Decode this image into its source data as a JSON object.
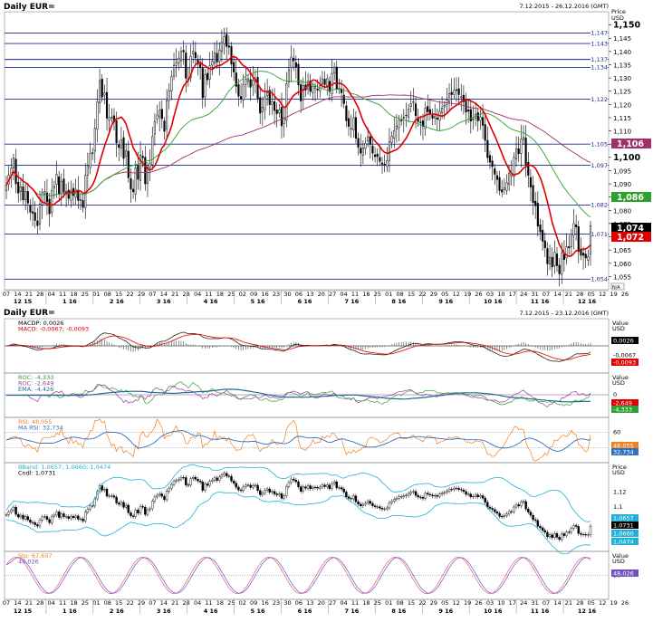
{
  "header": {
    "title": "Daily EUR=",
    "date_range": "7.12.2015 - 26.12.2016 (GMT)",
    "axis_caption_line1": "Price",
    "axis_caption_line2": "USD",
    "badge": "N/A"
  },
  "indicators_header": {
    "title": "Daily EUR=",
    "date_range": "7.12.2015 - 23.12.2016 (GMT)"
  },
  "colors": {
    "candle": "#000000",
    "ma_short": "#e00000",
    "ma_mid": "#2fa02f",
    "ma_long": "#a0306a",
    "hline": "#1c2a8c",
    "macd": "#222222",
    "macd_signal": "#e00000",
    "roc1": "#9a3aa0",
    "roc2": "#2fa02f",
    "roc_ema": "#1c6c8c",
    "rsi": "#f08020",
    "rsi_ma": "#3070c0",
    "boll": "#20b0d8",
    "stoch_k": "#e06080",
    "stoch_d": "#7050c0"
  },
  "chart_data": [
    {
      "type": "candlestick",
      "title": "Daily EUR=",
      "ylabel": "Price USD",
      "ylim": [
        1.05,
        1.155
      ],
      "grid": false,
      "y_ticks": [
        "1,150",
        "1,145",
        "1,140",
        "1,135",
        "1,130",
        "1,125",
        "1,120",
        "1,115",
        "1,110",
        "1,105",
        "1,100",
        "1,095",
        "1,090",
        "1,085",
        "1,080",
        "1,075",
        "1,070",
        "1,065",
        "1,060",
        "1,055"
      ],
      "horizontal_levels": [
        {
          "label": "1,147",
          "value": 1.147
        },
        {
          "label": "1,143",
          "value": 1.143
        },
        {
          "label": "1,137",
          "value": 1.137
        },
        {
          "label": "1,134",
          "value": 1.134
        },
        {
          "label": "1,122",
          "value": 1.122
        },
        {
          "label": "1,105",
          "value": 1.105
        },
        {
          "label": "1,097",
          "value": 1.097
        },
        {
          "label": "1,082",
          "value": 1.082
        },
        {
          "label": "1,071",
          "value": 1.071
        },
        {
          "label": "1,054",
          "value": 1.054
        }
      ],
      "last_value_badges": [
        {
          "label": "1,106",
          "value": 1.106,
          "color": "#a0306a"
        },
        {
          "label": "1,086",
          "value": 1.086,
          "color": "#2fa02f"
        },
        {
          "label": "1,074",
          "value": 1.074,
          "color": "#000000"
        },
        {
          "label": "1,072",
          "value": 1.072,
          "color": "#e00000"
        }
      ],
      "x_ticks_days": [
        "07",
        "14",
        "21",
        "28",
        "04",
        "11",
        "18",
        "25",
        "01",
        "08",
        "15",
        "22",
        "29",
        "07",
        "14",
        "21",
        "28",
        "04",
        "11",
        "18",
        "25",
        "02",
        "09",
        "16",
        "23",
        "30",
        "06",
        "13",
        "20",
        "27",
        "04",
        "11",
        "18",
        "25",
        "01",
        "08",
        "15",
        "22",
        "29",
        "05",
        "12",
        "19",
        "26",
        "03",
        "10",
        "17",
        "24",
        "31",
        "07",
        "14",
        "21",
        "28",
        "05",
        "12",
        "19",
        "26"
      ],
      "x_ticks_months": [
        "12 15",
        "1 16",
        "2 16",
        "3 16",
        "4 16",
        "5 16",
        "6 16",
        "7 16",
        "8 16",
        "9 16",
        "10 16",
        "11 16",
        "12 16"
      ],
      "series": [
        {
          "name": "EUR=",
          "type": "candle",
          "close": [
            1.0895,
            1.0932,
            1.096,
            1.0998,
            1.09,
            1.0865,
            1.0889,
            1.0839,
            1.0871,
            1.0827,
            1.0793,
            1.0789,
            1.0762,
            1.0742,
            1.0824,
            1.0867,
            1.0871,
            1.0832,
            1.0787,
            1.0876,
            1.0891,
            1.0936,
            1.086,
            1.091,
            1.0868,
            1.0871,
            1.0845,
            1.0875,
            1.0856,
            1.0879,
            1.0837,
            1.084,
            1.0811,
            1.0932,
            1.0969,
            1.1015,
            1.1015,
            1.1111,
            1.121,
            1.129,
            1.1228,
            1.1243,
            1.1148,
            1.115,
            1.1151,
            1.1134,
            1.1055,
            1.1037,
            1.1065,
            1.0996,
            1.1024,
            1.0923,
            1.088,
            1.087,
            1.096,
            1.0917,
            1.1008,
            1.0998,
            1.09,
            1.0963,
            1.0976,
            1.1079,
            1.1136,
            1.116,
            1.1178,
            1.1146,
            1.1098,
            1.1214,
            1.1252,
            1.1305,
            1.1348,
            1.1358,
            1.1375,
            1.14,
            1.1398,
            1.1299,
            1.1296,
            1.1382,
            1.1401,
            1.1376,
            1.1352,
            1.1339,
            1.1225,
            1.1312,
            1.1293,
            1.1346,
            1.1363,
            1.1394,
            1.136,
            1.1406,
            1.1434,
            1.1456,
            1.1419,
            1.1416,
            1.1352,
            1.1322,
            1.1268,
            1.1231,
            1.1221,
            1.1274,
            1.1296,
            1.1297,
            1.1265,
            1.1292,
            1.1295,
            1.1223,
            1.1167,
            1.1189,
            1.1229,
            1.1245,
            1.1199,
            1.121,
            1.1177,
            1.1165,
            1.118,
            1.1119,
            1.115,
            1.1278,
            1.1331,
            1.1379,
            1.1365,
            1.1342,
            1.1273,
            1.1213,
            1.1272,
            1.1254,
            1.1287,
            1.1249,
            1.1268,
            1.1267,
            1.1254,
            1.127,
            1.1297,
            1.1275,
            1.1297,
            1.1249,
            1.1317,
            1.1341,
            1.1259,
            1.1262,
            1.1244,
            1.1203,
            1.1138,
            1.1117,
            1.1109,
            1.115,
            1.1072,
            1.1038,
            1.1016,
            1.1036,
            1.1053,
            1.1078,
            1.1049,
            1.1016,
            1.1003,
            1.1003,
            1.0985,
            1.0974,
            1.0974,
            1.0988,
            1.1059,
            1.1079,
            1.1101,
            1.1119,
            1.114,
            1.114,
            1.1151,
            1.1159,
            1.1183,
            1.1202,
            1.121,
            1.1157,
            1.1135,
            1.1132,
            1.1117,
            1.1186,
            1.1172,
            1.1163,
            1.1148,
            1.1155,
            1.1144,
            1.1174,
            1.1186,
            1.1197,
            1.1216,
            1.124,
            1.1237,
            1.1253,
            1.1255,
            1.1237,
            1.1229,
            1.121,
            1.1171,
            1.1174,
            1.1137,
            1.1144,
            1.1163,
            1.1138,
            1.1153,
            1.1121,
            1.1064,
            1.0999,
            1.0982,
            1.0965,
            1.0936,
            1.0916,
            1.0875,
            1.0869,
            1.0884,
            1.0905,
            1.0939,
            1.0937,
            1.1,
            1.1032,
            1.1014,
            1.1069,
            1.1075,
            1.0973,
            1.0932,
            1.0888,
            1.0829,
            1.0817,
            1.074,
            1.0718,
            1.0683,
            1.0658,
            1.0598,
            1.0623,
            1.0586,
            1.0641,
            1.0591,
            1.056,
            1.0639,
            1.0614,
            1.0662,
            1.0658,
            1.0711,
            1.075,
            1.0737,
            1.0644,
            1.063,
            1.063,
            1.062,
            1.0626,
            1.0742
          ]
        }
      ]
    },
    {
      "type": "line",
      "title": "MACD",
      "legend": [
        "MACDP: 0,0026",
        "MACD: -0,0067; -0,0093"
      ],
      "ylim": [
        -0.012,
        0.012
      ],
      "last_value_badges": [
        "0,0026",
        "-0,0067",
        "-0,0093"
      ],
      "series": [
        {
          "name": "MACDP",
          "values": [
            0.0026
          ]
        },
        {
          "name": "MACD",
          "values": [
            -0.0067
          ]
        },
        {
          "name": "Signal",
          "values": [
            -0.0093
          ]
        }
      ]
    },
    {
      "type": "line",
      "title": "ROC",
      "legend": [
        "ROC: -4,333",
        "ROC: -2,649",
        "EMA: -4,426"
      ],
      "ylim": [
        -6,
        6
      ],
      "last_value_badges": [
        "-2,649",
        "-4,333"
      ],
      "series": [
        {
          "name": "ROC",
          "values": [
            -4.333
          ]
        },
        {
          "name": "ROC",
          "values": [
            -2.649
          ]
        },
        {
          "name": "EMA",
          "values": [
            -4.426
          ]
        }
      ]
    },
    {
      "type": "line",
      "title": "RSI",
      "legend": [
        "RSI: 48,055",
        "MA RSI: 32,734"
      ],
      "ylim": [
        20,
        80
      ],
      "y_ticks": [
        "60",
        "40"
      ],
      "last_value_badges": [
        "48,055",
        "32,734"
      ],
      "series": [
        {
          "name": "RSI",
          "values": [
            48.055
          ]
        },
        {
          "name": "MA RSI",
          "values": [
            32.734
          ]
        }
      ]
    },
    {
      "type": "line",
      "title": "Bollinger Bands",
      "legend": [
        "BBand: 1,0657; 1,0660; 1,0474",
        "Cndl: 1,0731"
      ],
      "ylim": [
        1.04,
        1.16
      ],
      "y_ticks": [
        "1,12",
        "1,1"
      ],
      "last_value_badges": [
        "1,0657",
        "1,0731",
        "1,0660",
        "1,0474"
      ],
      "series": [
        {
          "name": "BBand upper",
          "values": [
            1.0657
          ]
        },
        {
          "name": "BBand mid",
          "values": [
            1.066
          ]
        },
        {
          "name": "BBand lower",
          "values": [
            1.0474
          ]
        }
      ]
    },
    {
      "type": "line",
      "title": "Stochastic",
      "legend": [
        "Sto: 67,607",
        "48,026"
      ],
      "ylim": [
        0,
        100
      ],
      "y_ticks": [
        "50"
      ],
      "last_value_badges": [
        "48,026"
      ],
      "series": [
        {
          "name": "%K",
          "values": [
            67.607
          ]
        },
        {
          "name": "%D",
          "values": [
            48.026
          ]
        }
      ]
    }
  ]
}
